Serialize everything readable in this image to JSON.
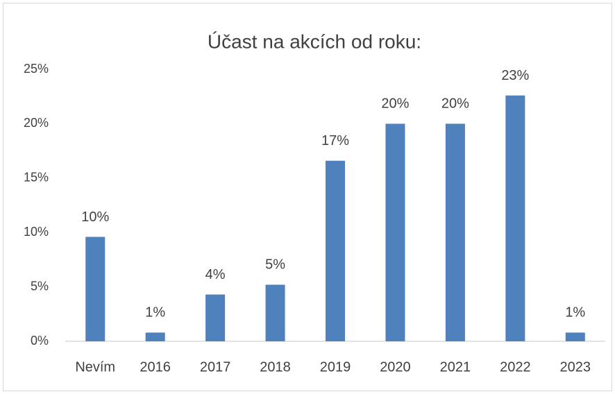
{
  "chart_data": {
    "type": "bar",
    "title": "Účast na akcích od roku:",
    "categories": [
      "Nevím",
      "2016",
      "2017",
      "2018",
      "2019",
      "2020",
      "2021",
      "2022",
      "2023"
    ],
    "values": [
      9.6,
      0.8,
      4.3,
      5.2,
      16.6,
      20,
      20,
      22.6,
      0.8
    ],
    "value_labels": [
      "10%",
      "1%",
      "4%",
      "5%",
      "17%",
      "20%",
      "20%",
      "23%",
      "1%"
    ],
    "color": "#4f81bd",
    "ylim": [
      0,
      25
    ],
    "yticks": [
      {
        "value": 0,
        "label": "0%"
      },
      {
        "value": 5,
        "label": "5%"
      },
      {
        "value": 10,
        "label": "10%"
      },
      {
        "value": 15,
        "label": "15%"
      },
      {
        "value": 20,
        "label": "20%"
      },
      {
        "value": 25,
        "label": "25%"
      }
    ],
    "grid": false
  }
}
